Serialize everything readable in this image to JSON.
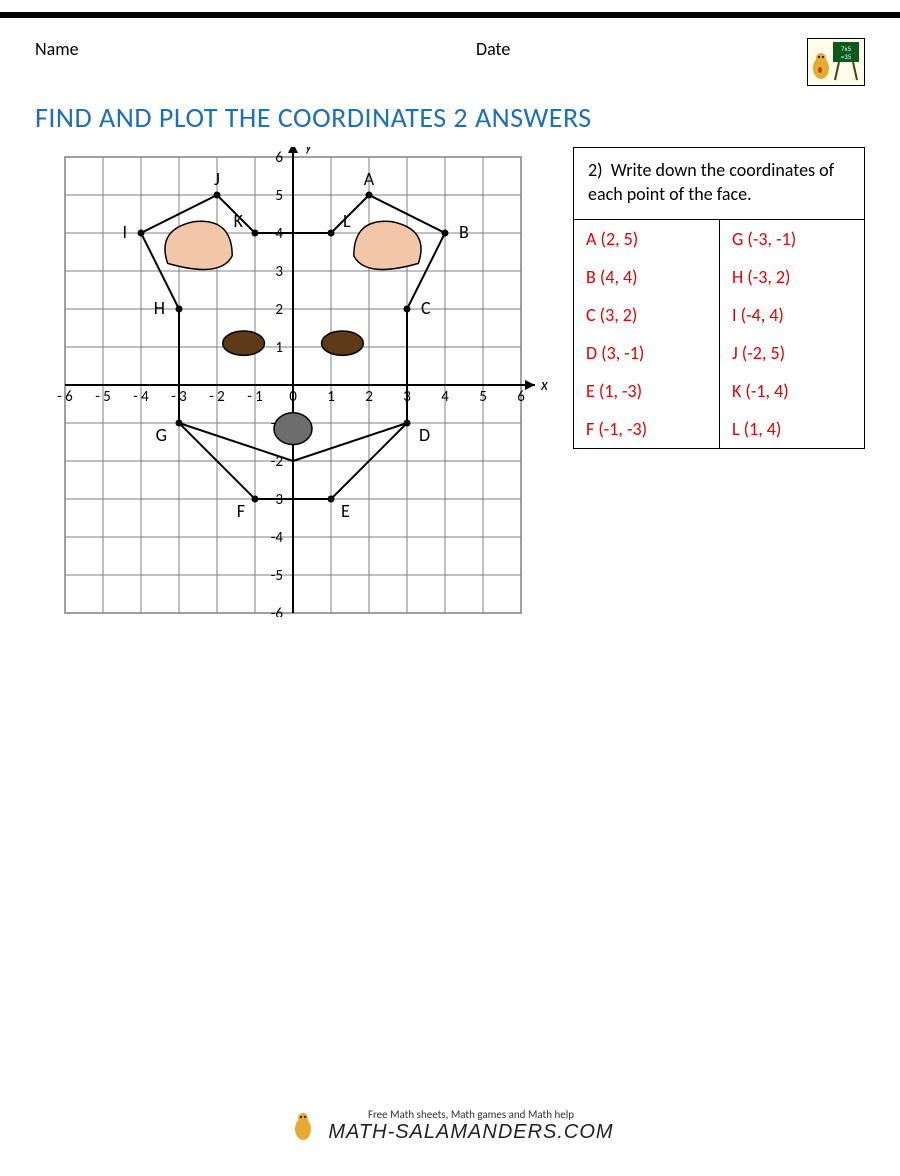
{
  "header": {
    "name_label": "Name",
    "date_label": "Date"
  },
  "title": "FIND AND PLOT THE COORDINATES 2 ANSWERS",
  "chart": {
    "type": "coordinate-grid",
    "width_units": 12,
    "height_units": 12,
    "x_range": [
      -6,
      6
    ],
    "y_range": [
      -6,
      6
    ],
    "grid_color": "#808080",
    "axis_color": "#000000",
    "background": "#ffffff",
    "axis_labels": {
      "x": "x",
      "y": "y"
    },
    "tick_labels_x": [
      "- 6",
      "- 5",
      "- 4",
      "- 3",
      "- 2",
      "- 1",
      "0",
      "1",
      "2",
      "3",
      "4",
      "5",
      "6"
    ],
    "tick_labels_y_pos": [
      "1",
      "2",
      "3",
      "4",
      "5",
      "6"
    ],
    "tick_labels_y_neg": [
      "-1",
      "-2",
      "-3",
      "-4",
      "-5",
      "-6"
    ],
    "outline_stroke": "#000000",
    "outline_width": 2,
    "fill_ear": "#f2c6a8",
    "fill_eye": "#5e3a18",
    "fill_nose": "#6d6d6d",
    "points": {
      "A": {
        "x": 2,
        "y": 5
      },
      "B": {
        "x": 4,
        "y": 4
      },
      "C": {
        "x": 3,
        "y": 2
      },
      "D": {
        "x": 3,
        "y": -1
      },
      "E": {
        "x": 1,
        "y": -3
      },
      "F": {
        "x": -1,
        "y": -3
      },
      "G": {
        "x": -3,
        "y": -1
      },
      "H": {
        "x": -3,
        "y": 2
      },
      "I": {
        "x": -4,
        "y": 4
      },
      "J": {
        "x": -2,
        "y": 5
      },
      "K": {
        "x": -1,
        "y": 4
      },
      "L": {
        "x": 1,
        "y": 4
      }
    },
    "label_font_size": 18,
    "num_font_size": 15
  },
  "answers": {
    "prompt_prefix": "2)",
    "prompt": "Write down the coordinates of each point of the face.",
    "answer_color": "#e30000",
    "rows": [
      {
        "l": "A",
        "lc": "(2, 5)",
        "r": "G",
        "rc": "(-3, -1)"
      },
      {
        "l": "B",
        "lc": "(4, 4)",
        "r": "H",
        "rc": "(-3, 2)"
      },
      {
        "l": "C",
        "lc": "(3, 2)",
        "r": "I",
        "rc": "(-4, 4)"
      },
      {
        "l": "D",
        "lc": "(3, -1)",
        "r": "J",
        "rc": "(-2, 5)"
      },
      {
        "l": "E",
        "lc": "(1, -3)",
        "r": "K",
        "rc": "(-1, 4)"
      },
      {
        "l": "F",
        "lc": "(-1, -3)",
        "r": "L",
        "rc": "(1, 4)"
      }
    ]
  },
  "footer": {
    "tagline": "Free Math sheets, Math games and Math help",
    "brand": "MATH-SALAMANDERS.COM"
  }
}
